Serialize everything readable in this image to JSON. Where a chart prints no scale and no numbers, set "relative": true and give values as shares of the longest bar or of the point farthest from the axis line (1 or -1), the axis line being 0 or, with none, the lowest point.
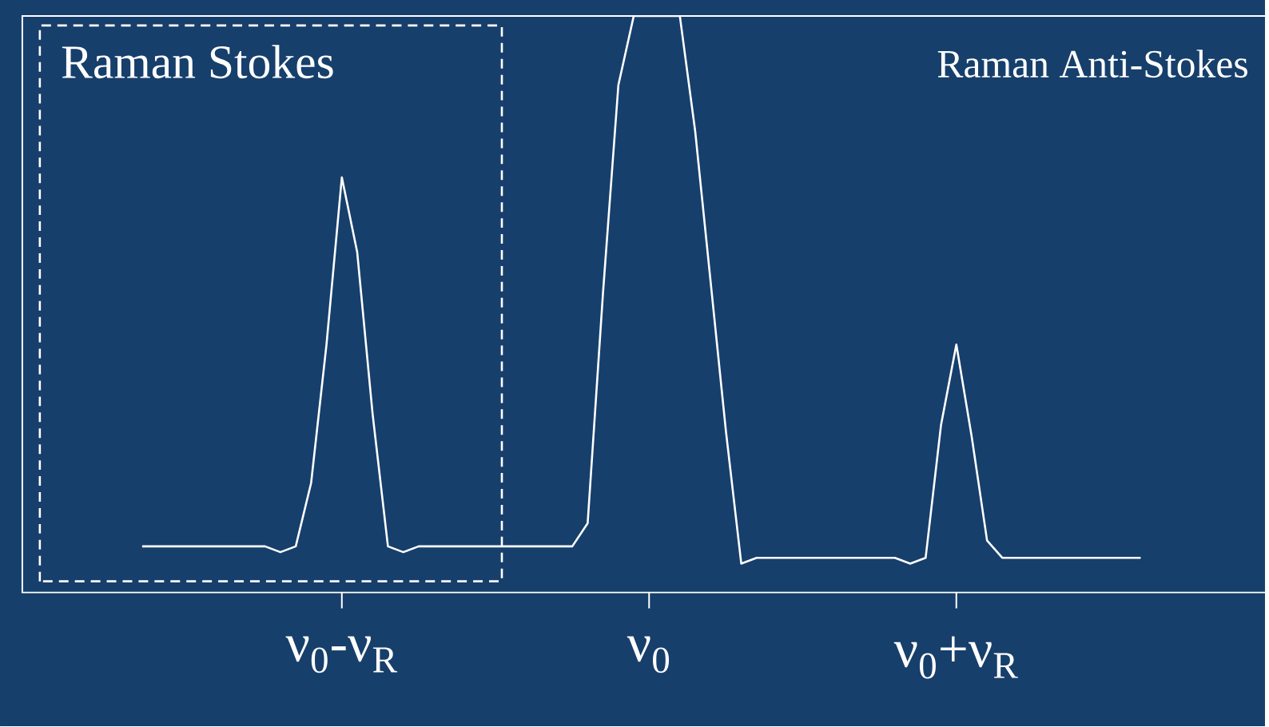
{
  "chart_data": {
    "type": "line",
    "relative": true,
    "color": "#ffffff",
    "categories": [
      null,
      null,
      null,
      null,
      null,
      null,
      null,
      null,
      null,
      null,
      null,
      null,
      null,
      "ν$_{0}$-ν$_{R}$",
      null,
      null,
      null,
      null,
      null,
      null,
      null,
      null,
      null,
      null,
      null,
      null,
      null,
      null,
      null,
      null,
      null,
      null,
      null,
      "ν$_{0}$",
      null,
      null,
      null,
      null,
      null,
      null,
      null,
      null,
      null,
      null,
      null,
      null,
      null,
      null,
      null,
      null,
      null,
      null,
      null,
      "ν$_{0}$+ν$_{R}$",
      null,
      null,
      null,
      null,
      null,
      null,
      null,
      null,
      null,
      null,
      null,
      null
    ],
    "values": [
      0.08,
      0.08,
      0.08,
      0.08,
      0.08,
      0.08,
      0.08,
      0.08,
      0.08,
      0.07,
      0.08,
      0.19,
      0.43,
      0.72,
      0.59,
      0.31,
      0.08,
      0.07,
      0.08,
      0.08,
      0.08,
      0.08,
      0.08,
      0.08,
      0.08,
      0.08,
      0.08,
      0.08,
      0.08,
      0.12,
      0.52,
      0.88,
      1,
      1,
      1,
      1,
      0.8,
      0.54,
      0.28,
      0.05,
      0.06,
      0.06,
      0.06,
      0.06,
      0.06,
      0.06,
      0.06,
      0.06,
      0.06,
      0.06,
      0.05,
      0.06,
      0.29,
      0.43,
      0.27,
      0.09,
      0.06,
      0.06,
      0.06,
      0.06,
      0.06,
      0.06,
      0.06,
      0.06,
      0.06,
      0.06
    ],
    "annotations": [
      "Raman Stokes",
      "Raman Anti-Stokes"
    ]
  }
}
